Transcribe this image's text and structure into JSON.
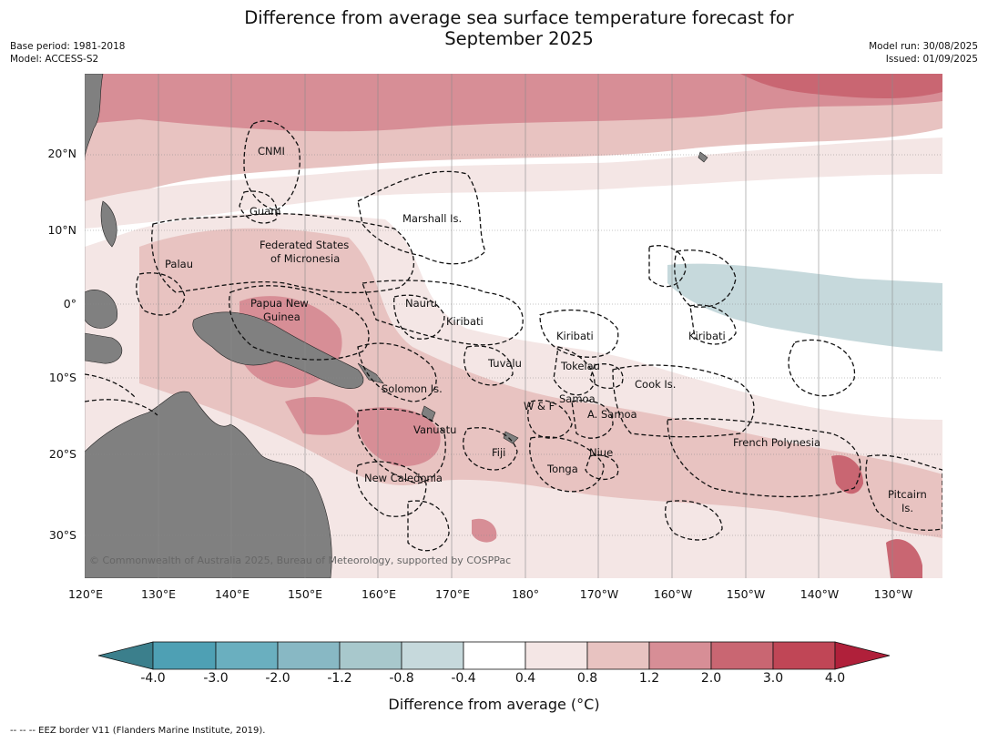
{
  "title_line1": "Difference from average sea surface temperature forecast for",
  "title_line2": "September 2025",
  "meta_left": [
    "Base period: 1981-2018",
    "Model: ACCESS-S2"
  ],
  "meta_right": [
    "Model run: 30/08/2025",
    "Issued: 01/09/2025"
  ],
  "lat_labels": [
    "20°N",
    "10°N",
    "0°",
    "10°S",
    "20°S",
    "30°S"
  ],
  "lon_labels": [
    "120°E",
    "130°E",
    "140°E",
    "150°E",
    "160°E",
    "170°E",
    "180°",
    "170°W",
    "160°W",
    "150°W",
    "140°W",
    "130°W"
  ],
  "places": [
    {
      "name": "CNMI"
    },
    {
      "name": "Guam"
    },
    {
      "name": "Marshall Is."
    },
    {
      "name": "Federated States"
    },
    {
      "name": "of Micronesia"
    },
    {
      "name": "Palau"
    },
    {
      "name": "Nauru"
    },
    {
      "name": "Papua New"
    },
    {
      "name": "Guinea"
    },
    {
      "name": "Kiribati"
    },
    {
      "name": "Kiribati"
    },
    {
      "name": "Kiribati"
    },
    {
      "name": "Tuvalu"
    },
    {
      "name": "Tokelau"
    },
    {
      "name": "Solomon Is."
    },
    {
      "name": "Cook Is."
    },
    {
      "name": "Samoa"
    },
    {
      "name": "W & F"
    },
    {
      "name": "A. Samoa"
    },
    {
      "name": "Vanuatu"
    },
    {
      "name": "Fiji"
    },
    {
      "name": "Niue"
    },
    {
      "name": "French Polynesia"
    },
    {
      "name": "Tonga"
    },
    {
      "name": "New Caledonia"
    },
    {
      "name": "Pitcairn"
    },
    {
      "name": "Is."
    }
  ],
  "copyright": "© Commonwealth of Australia 2025, Bureau of Meteorology, supported by COSPPac",
  "colorbar": {
    "labels": [
      "-4.0",
      "-3.0",
      "-2.0",
      "-1.2",
      "-0.8",
      "-0.4",
      "0.4",
      "0.8",
      "1.2",
      "2.0",
      "3.0",
      "4.0"
    ],
    "colors": [
      "#3b7f8c",
      "#4ea0b4",
      "#6aafbf",
      "#88b8c4",
      "#a8c8cc",
      "#c6d9dc",
      "#ffffff",
      "#f4e6e5",
      "#e8c3c1",
      "#d78e96",
      "#c96672",
      "#c04656",
      "#b0203a"
    ],
    "title": "Difference from average (°C)"
  },
  "footnote": "--  --  -- EEZ border V11 (Flanders Marine Institute, 2019)."
}
